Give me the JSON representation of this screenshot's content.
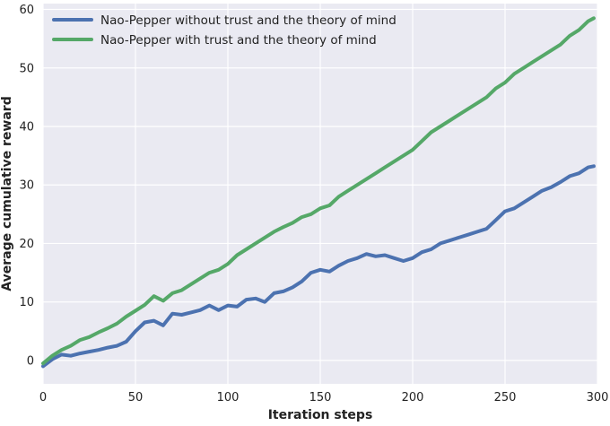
{
  "chart_data": {
    "type": "line",
    "title": "",
    "xlabel": "Iteration steps",
    "ylabel": "Average cumulative reward",
    "xlim": [
      0,
      300
    ],
    "ylim": [
      -4,
      61
    ],
    "xticks": [
      0,
      50,
      100,
      150,
      200,
      250,
      300
    ],
    "yticks": [
      0,
      10,
      20,
      30,
      40,
      50,
      60
    ],
    "grid": true,
    "legend_position": "top-left",
    "background_color": "#EAEAF2",
    "series": [
      {
        "name": "Nao-Pepper without trust and the theory of mind",
        "color": "#4C72B0",
        "x": [
          0,
          5,
          10,
          15,
          20,
          25,
          30,
          35,
          40,
          45,
          50,
          55,
          60,
          65,
          70,
          75,
          80,
          85,
          90,
          95,
          100,
          105,
          110,
          115,
          120,
          125,
          130,
          135,
          140,
          145,
          150,
          155,
          160,
          165,
          170,
          175,
          180,
          185,
          190,
          195,
          200,
          205,
          210,
          215,
          220,
          225,
          230,
          235,
          240,
          245,
          250,
          255,
          260,
          265,
          270,
          275,
          280,
          285,
          290,
          295,
          298
        ],
        "y": [
          -1,
          0.2,
          1,
          0.8,
          1.2,
          1.5,
          1.8,
          2.2,
          2.5,
          3.2,
          5,
          6.5,
          6.8,
          6,
          8,
          7.8,
          8.2,
          8.6,
          9.4,
          8.6,
          9.4,
          9.2,
          10.4,
          10.6,
          10,
          11.5,
          11.8,
          12.5,
          13.5,
          15,
          15.5,
          15.2,
          16.2,
          17,
          17.5,
          18.2,
          17.8,
          18,
          17.5,
          17,
          17.5,
          18.5,
          19,
          20,
          20.5,
          21,
          21.5,
          22,
          22.5,
          24,
          25.5,
          26,
          27,
          28,
          29,
          29.6,
          30.5,
          31.5,
          32,
          33,
          33.2
        ]
      },
      {
        "name": "Nao-Pepper with trust and the theory of mind",
        "color": "#55A868",
        "x": [
          0,
          5,
          10,
          15,
          20,
          25,
          30,
          35,
          40,
          45,
          50,
          55,
          60,
          65,
          70,
          75,
          80,
          85,
          90,
          95,
          100,
          105,
          110,
          115,
          120,
          125,
          130,
          135,
          140,
          145,
          150,
          155,
          160,
          165,
          170,
          175,
          180,
          185,
          190,
          195,
          200,
          205,
          210,
          215,
          220,
          225,
          230,
          235,
          240,
          245,
          250,
          255,
          260,
          265,
          270,
          275,
          280,
          285,
          290,
          295,
          298
        ],
        "y": [
          -0.5,
          0.8,
          1.8,
          2.5,
          3.5,
          4,
          4.8,
          5.5,
          6.3,
          7.5,
          8.5,
          9.5,
          11,
          10.2,
          11.5,
          12,
          13,
          14,
          15,
          15.5,
          16.5,
          18,
          19,
          20,
          21,
          22,
          22.8,
          23.5,
          24.5,
          25,
          26,
          26.5,
          28,
          29,
          30,
          31,
          32,
          33,
          34,
          35,
          36,
          37.5,
          39,
          40,
          41,
          42,
          43,
          44,
          45,
          46.5,
          47.5,
          49,
          50,
          51,
          52,
          53,
          54,
          55.5,
          56.5,
          58,
          58.5
        ]
      }
    ]
  }
}
